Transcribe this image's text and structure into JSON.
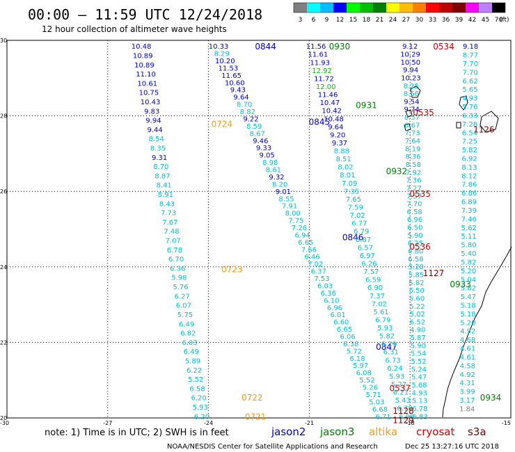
{
  "header": {
    "title": "00:00 – 11:59 UTC 12/24/2018",
    "subtitle": "12 hour collection of altimeter wave heights"
  },
  "legend": {
    "unit": "(ft)",
    "bins": [
      {
        "label": "3",
        "color": "#7f7f7f"
      },
      {
        "label": "6",
        "color": "#00ffff"
      },
      {
        "label": "9",
        "color": "#00bfff"
      },
      {
        "label": "12",
        "color": "#0000ff"
      },
      {
        "label": "15",
        "color": "#00ff00"
      },
      {
        "label": "18",
        "color": "#00bf00"
      },
      {
        "label": "21",
        "color": "#008000"
      },
      {
        "label": "24",
        "color": "#ffff00"
      },
      {
        "label": "27",
        "color": "#ffbf00"
      },
      {
        "label": "30",
        "color": "#ff8000"
      },
      {
        "label": "33",
        "color": "#ff0000"
      },
      {
        "label": "36",
        "color": "#c00000"
      },
      {
        "label": "39",
        "color": "#800000"
      },
      {
        "label": "42",
        "color": "#ff00ff"
      },
      {
        "label": "45",
        "color": "#bf80ff"
      },
      {
        "label": "70",
        "color": "#000000"
      }
    ]
  },
  "footer": {
    "note": "note: 1) Time is in UTC; 2) SWH is in feet",
    "credit": "NOAA/NESDIS Center for Satellite Applications and Research",
    "timestamp": "Dec 25 13:27:16 UTC 2018",
    "satellites": [
      {
        "name": "jason2",
        "color": "#0000cc"
      },
      {
        "name": "jason3",
        "color": "#008000"
      },
      {
        "name": "altika",
        "color": "#ff9900"
      },
      {
        "name": "cryosat",
        "color": "#cc0000"
      },
      {
        "name": "s3a",
        "color": "#800000"
      }
    ]
  },
  "chart_data": {
    "type": "scatter",
    "title": "00:00 – 11:59 UTC 12/24/2018",
    "xlim": [
      -30,
      -15
    ],
    "ylim": [
      20,
      30
    ],
    "xticks": [
      "-30",
      "-27",
      "-24",
      "-21",
      "-18",
      "-15"
    ],
    "yticks": [
      "20",
      "22",
      "24",
      "26",
      "28",
      "30"
    ],
    "grid": true,
    "color_scale": {
      "6": "#00ffff",
      "9": "#00c8ff",
      "12": "#0000ff",
      "15": "#00cc00",
      "low": "#7f7f7f"
    },
    "tracks": [
      {
        "satellite": "altika",
        "values": [
          "10.48",
          "10.89",
          "10.89",
          "11.10",
          "10.61",
          "10.75",
          "10.43",
          "9.83",
          "9.94",
          "9.44",
          "8.54",
          "8.35",
          "9.31",
          "8.70",
          "8.87",
          "8.41",
          "8.91",
          "8.43",
          "7.73",
          "7.67",
          "7.48",
          "7.07",
          "6.78",
          "6.70",
          "6.36",
          "5.98",
          "5.76",
          "6.27",
          "6.07",
          "5.75",
          "6.49",
          "6.82",
          "6.03",
          "6.49",
          "5.89",
          "6.22",
          "5.52",
          "6.58",
          "6.20",
          "5.93",
          "6.20"
        ],
        "x_start": -26.0,
        "x_end": -24.2,
        "y_start": 29.85,
        "y_end": 20.05,
        "labels": [
          {
            "text": "0724",
            "x": -23.6,
            "y": 27.8
          },
          {
            "text": "0723",
            "x": -23.3,
            "y": 23.95
          },
          {
            "text": "0722",
            "x": -22.7,
            "y": 20.55
          },
          {
            "text": "0721",
            "x": -22.6,
            "y": 20.05
          }
        ]
      },
      {
        "satellite": "jason2",
        "values": [
          "10.33",
          "8.29",
          "10.20",
          "11.53",
          "11.65",
          "10.60",
          "9.43",
          "9.64",
          "8.70",
          "8.82",
          "9.22",
          "8.59",
          "8.67",
          "9.46",
          "9.33",
          "9.05",
          "8.98",
          "8.61",
          "9.32",
          "8.20",
          "9.01",
          "8.55",
          "7.91",
          "8.00",
          "7.75",
          "7.26",
          "6.94",
          "6.65",
          "7.66",
          "6.46",
          "7.02",
          "6.37",
          "7.53",
          "6.03",
          "6.36",
          "6.10",
          "6.96",
          "6.01",
          "6.60",
          "6.65",
          "6.06",
          "6.38",
          "5.72",
          "6.18",
          "5.97",
          "6.08",
          "5.52",
          "5.26",
          "5.71",
          "5.03",
          "6.68",
          "6.71"
        ],
        "x_start": -23.7,
        "x_end": -18.8,
        "y_start": 29.85,
        "y_end": 20.05,
        "labels": [
          {
            "text": "0844",
            "x": -22.3,
            "y": 29.85
          },
          {
            "text": "0845",
            "x": -20.7,
            "y": 27.85
          },
          {
            "text": "0846",
            "x": -19.7,
            "y": 24.8
          },
          {
            "text": "0847",
            "x": -18.7,
            "y": 21.9
          }
        ]
      },
      {
        "satellite": "jason3",
        "values": [
          "11.56",
          "11.61",
          "11.93",
          "12.92",
          "11.72",
          "12.00",
          "11.46",
          "10.47",
          "10.42",
          "10.48",
          "9.64",
          "9.20",
          "9.37",
          "8.88",
          "8.51",
          "8.02",
          "8.01",
          "7.09",
          "7.35",
          "7.65",
          "7.59",
          "7.02",
          "6.77",
          "6.79",
          "6.87",
          "6.57",
          "6.97",
          "6.26",
          "7.57",
          "6.59",
          "6.90",
          "7.37",
          "7.02",
          "5.61",
          "6.79",
          "5.93",
          "5.82",
          "6.29",
          "6.31",
          "6.73",
          "6.24",
          "5.93",
          "5.27",
          "6.21",
          "5.43",
          "6.78",
          "5.98"
        ],
        "x_start": -20.8,
        "x_end": -18.1,
        "y_start": 29.85,
        "y_end": 20.05,
        "labels": [
          {
            "text": "0930",
            "x": -20.1,
            "y": 29.85
          },
          {
            "text": "0931",
            "x": -19.3,
            "y": 28.3
          },
          {
            "text": "0932",
            "x": -18.4,
            "y": 26.55
          },
          {
            "text": "0933",
            "x": -16.5,
            "y": 23.55
          },
          {
            "text": "0934",
            "x": -15.6,
            "y": 20.55
          }
        ]
      },
      {
        "satellite": "cryosat",
        "values": [
          "9.12",
          "10.29",
          "10.50",
          "9.94",
          "10.23",
          "8.25",
          "8.66",
          "9.54",
          "9.74",
          "8.57",
          "8.67",
          "7.73",
          "7.64",
          "8.19",
          "8.36",
          "8.58",
          "7.92",
          "7.36",
          "7.27",
          "7.57",
          "7.70",
          "6.58",
          "6.96",
          "6.50",
          "5.90",
          "6.25",
          "6.80",
          "6.58",
          "5.20",
          "5.85",
          "5.82",
          "5.50",
          "5.60",
          "5.22",
          "5.02",
          "6.52",
          "4.90",
          "5.87",
          "5.90",
          "5.54",
          "5.52",
          "5.24",
          "5.47",
          "5.68",
          "4.93",
          "5.13",
          "6.78",
          "6.83"
        ],
        "x_start": -18.0,
        "x_end": -17.7,
        "y_start": 29.85,
        "y_end": 20.05,
        "labels": [
          {
            "text": "0534",
            "x": -17.0,
            "y": 29.85
          },
          {
            "text": "0535",
            "x": -17.6,
            "y": 28.1
          },
          {
            "text": "0535",
            "x": -17.7,
            "y": 25.95
          },
          {
            "text": "0536",
            "x": -17.7,
            "y": 24.55
          },
          {
            "text": "0537",
            "x": -18.3,
            "y": 20.8
          }
        ]
      },
      {
        "satellite": "s3a",
        "values": [
          "9.18",
          "8.77",
          "7.70",
          "7.70",
          "6.62",
          "5.65",
          "4.93",
          "5.76",
          "6.33",
          "7.28",
          "6.54",
          "7.25",
          "5.82",
          "6.92",
          "8.13",
          "8.12",
          "7.86",
          "6.86",
          "6.89",
          "7.39",
          "7.46",
          "5.62",
          "5.11",
          "5.80",
          "5.40",
          "5.82",
          "5.20",
          "5.04",
          "5.82",
          "5.47",
          "5.18",
          "5.18",
          "5.20",
          "4.92",
          "4.68",
          "4.61",
          "4.61",
          "4.58",
          "4.92",
          "4.31",
          "3.99",
          "3.17",
          "1.84"
        ],
        "x_start": -16.2,
        "x_end": -16.3,
        "y_start": 29.85,
        "y_end": 20.25,
        "labels": [
          {
            "text": "1126",
            "x": -15.8,
            "y": 27.65
          },
          {
            "text": "1127",
            "x": -17.3,
            "y": 23.85
          },
          {
            "text": "1128",
            "x": -18.2,
            "y": 20.2
          },
          {
            "text": "1129",
            "x": -18.2,
            "y": 19.95
          }
        ]
      }
    ]
  }
}
